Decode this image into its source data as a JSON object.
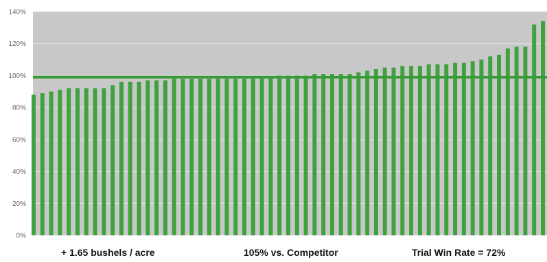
{
  "chart_data": {
    "type": "bar",
    "values": [
      88,
      89,
      90,
      91,
      92,
      92,
      92,
      92,
      92,
      94,
      96,
      96,
      96,
      97,
      97,
      97,
      98,
      98,
      98,
      98,
      98,
      98,
      98,
      98,
      98,
      99,
      99,
      99,
      100,
      100,
      100,
      100,
      101,
      101,
      101,
      101,
      101,
      102,
      103,
      104,
      105,
      105,
      106,
      106,
      106,
      107,
      107,
      107,
      108,
      108,
      109,
      110,
      112,
      113,
      117,
      118,
      118,
      132,
      134
    ],
    "reference_line": 99,
    "ylim": [
      0,
      140
    ],
    "yticks": [
      "0%",
      "20%",
      "40%",
      "60%",
      "80%",
      "100%",
      "120%",
      "140%"
    ],
    "grid": true,
    "colors": {
      "bar": "#3fa23f",
      "reference_line": "#3a9a3a",
      "plot_background": "#c8c8c8",
      "grid": "#e6e6e6"
    }
  },
  "captions": [
    "+ 1.65 bushels / acre",
    "105% vs. Competitor",
    "Trial Win Rate = 72%"
  ]
}
